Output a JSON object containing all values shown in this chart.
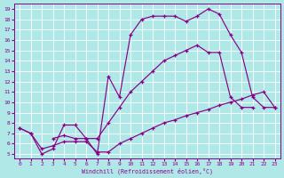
{
  "background_color": "#b0e8e8",
  "grid_color": "#ffffff",
  "line_color": "#880088",
  "xlabel": "Windchill (Refroidissement éolien,°C)",
  "xlim": [
    -0.5,
    23.5
  ],
  "ylim": [
    4.6,
    19.5
  ],
  "ytick_vals": [
    5,
    6,
    7,
    8,
    9,
    10,
    11,
    12,
    13,
    14,
    15,
    16,
    17,
    18,
    19
  ],
  "xtick_vals": [
    0,
    1,
    2,
    3,
    4,
    5,
    6,
    7,
    8,
    9,
    10,
    11,
    12,
    13,
    14,
    15,
    16,
    17,
    18,
    19,
    20,
    21,
    22,
    23
  ],
  "curve1_x": [
    0,
    1,
    2,
    3,
    4,
    5,
    6,
    7,
    8,
    9,
    10,
    11,
    12,
    13,
    14,
    15,
    16,
    17,
    18,
    19,
    20,
    21,
    22,
    23
  ],
  "curve1_y": [
    7.5,
    7.0,
    5.0,
    5.5,
    7.8,
    7.8,
    6.5,
    5.0,
    12.5,
    10.5,
    16.5,
    18.0,
    18.3,
    18.3,
    18.3,
    17.8,
    18.3,
    19.0,
    18.5,
    16.5,
    14.8,
    10.5,
    9.5,
    9.5
  ],
  "curve2_x": [
    3,
    4,
    5,
    6,
    7,
    8,
    9,
    10,
    11,
    12,
    13,
    14,
    15,
    16,
    17,
    18,
    19,
    20,
    21
  ],
  "curve2_y": [
    6.5,
    6.8,
    6.5,
    6.5,
    6.5,
    8.0,
    9.5,
    11.0,
    12.0,
    13.0,
    14.0,
    14.5,
    15.0,
    15.5,
    14.8,
    14.8,
    10.5,
    9.5,
    9.5
  ],
  "curve3_x": [
    0,
    1,
    2,
    3,
    4,
    5,
    6,
    7,
    8,
    9,
    10,
    11,
    12,
    13,
    14,
    15,
    16,
    17,
    18,
    19,
    20,
    21,
    22,
    23
  ],
  "curve3_y": [
    7.5,
    7.0,
    5.5,
    5.8,
    6.2,
    6.2,
    6.2,
    5.2,
    5.2,
    6.0,
    6.5,
    7.0,
    7.5,
    8.0,
    8.3,
    8.7,
    9.0,
    9.3,
    9.7,
    10.0,
    10.3,
    10.7,
    11.0,
    9.5
  ]
}
